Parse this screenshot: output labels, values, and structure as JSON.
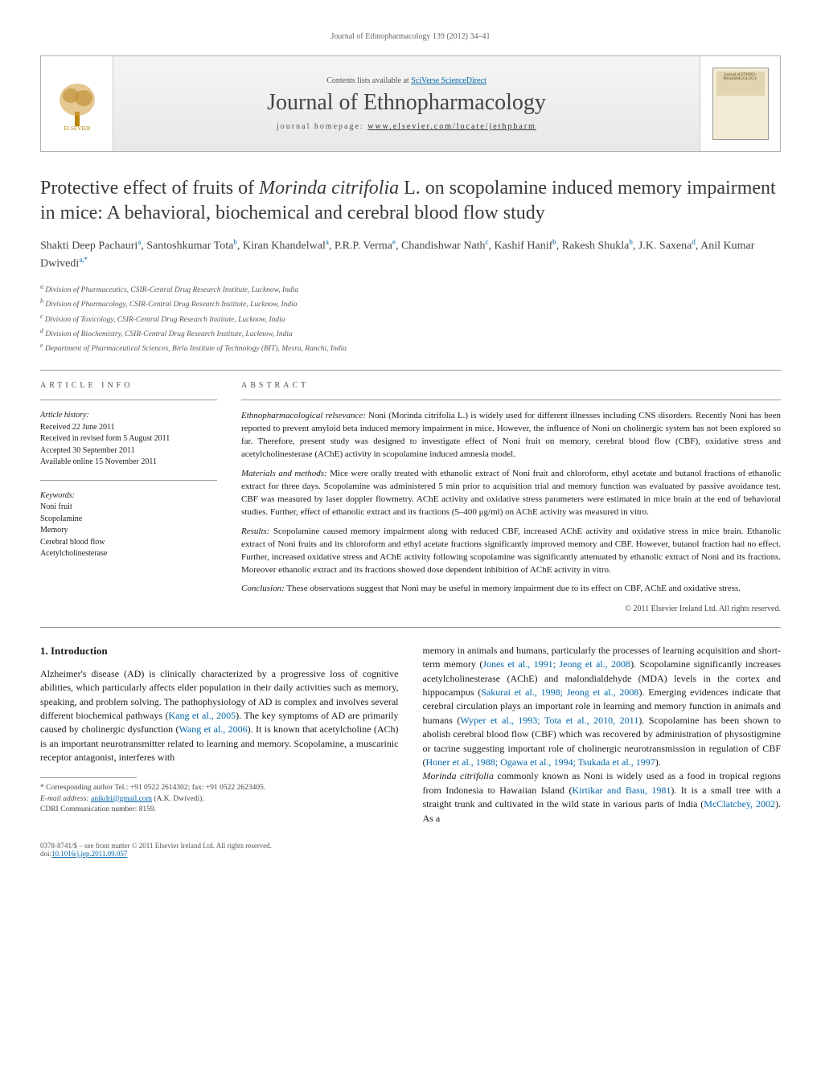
{
  "header": {
    "ref_line": "Journal of Ethnopharmacology 139 (2012) 34–41",
    "contents_prefix": "Contents lists available at ",
    "contents_link": "SciVerse ScienceDirect",
    "journal_title": "Journal of Ethnopharmacology",
    "homepage_prefix": "journal homepage: ",
    "homepage_url": "www.elsevier.com/locate/jethpharm",
    "elsevier_label": "ELSEVIER",
    "cover_label": "Journal of ETHNO-PHARMACOLOGY"
  },
  "title_parts": {
    "pre": "Protective effect of fruits of ",
    "italic": "Morinda citrifolia",
    "post": " L. on scopolamine induced memory impairment in mice: A behavioral, biochemical and cerebral blood flow study"
  },
  "authors_html": "Shakti Deep Pachauri<sup>a</sup>, Santoshkumar Tota<sup>b</sup>, Kiran Khandelwal<sup>a</sup>, P.R.P. Verma<sup>e</sup>, Chandishwar Nath<sup>c</sup>, Kashif Hanif<sup>b</sup>, Rakesh Shukla<sup>b</sup>, J.K. Saxena<sup>d</sup>, Anil Kumar Dwivedi<sup>a,*</sup>",
  "affiliations": [
    "a Division of Pharmaceutics, CSIR-Central Drug Research Institute, Lucknow, India",
    "b Division of Pharmacology, CSIR-Central Drug Research Institute, Lucknow, India",
    "c Division of Toxicology, CSIR-Central Drug Research Institute, Lucknow, India",
    "d Division of Biochemistry, CSIR-Central Drug Research Institute, Lucknow, India",
    "e Department of Pharmaceutical Sciences, Birla Institute of Technology (BIT), Mesra, Ranchi, India"
  ],
  "info": {
    "label": "ARTICLE INFO",
    "history_head": "Article history:",
    "history": [
      "Received 22 June 2011",
      "Received in revised form 5 August 2011",
      "Accepted 30 September 2011",
      "Available online 15 November 2011"
    ],
    "keywords_head": "Keywords:",
    "keywords": [
      "Noni fruit",
      "Scopolamine",
      "Memory",
      "Cerebral blood flow",
      "Acetylcholinesterase"
    ]
  },
  "abstract": {
    "label": "ABSTRACT",
    "paras": [
      {
        "lead": "Ethnopharmacological relsevance:",
        "text": " Noni (Morinda citrifolia L.) is widely used for different illnesses including CNS disorders. Recently Noni has been reported to prevent amyloid beta induced memory impairment in mice. However, the influence of Noni on cholinergic system has not been explored so far. Therefore, present study was designed to investigate effect of Noni fruit on memory, cerebral blood flow (CBF), oxidative stress and acetylcholinesterase (AChE) activity in scopolamine induced amnesia model."
      },
      {
        "lead": "Materials and methods:",
        "text": " Mice were orally treated with ethanolic extract of Noni fruit and chloroform, ethyl acetate and butanol fractions of ethanolic extract for three days. Scopolamine was administered 5 min prior to acquisition trial and memory function was evaluated by passive avoidance test. CBF was measured by laser doppler flowmetry. AChE activity and oxidative stress parameters were estimated in mice brain at the end of behavioral studies. Further, effect of ethanolic extract and its fractions (5–400 μg/ml) on AChE activity was measured in vitro."
      },
      {
        "lead": "Results:",
        "text": " Scopolamine caused memory impairment along with reduced CBF, increased AChE activity and oxidative stress in mice brain. Ethanolic extract of Noni fruits and its chloroform and ethyl acetate fractions significantly improved memory and CBF. However, butanol fraction had no effect. Further, increased oxidative stress and AChE activity following scopolamine was significantly attenuated by ethanolic extract of Noni and its fractions. Moreover ethanolic extract and its fractions showed dose dependent inhibition of AChE activity in vitro."
      },
      {
        "lead": "Conclusion:",
        "text": " These observations suggest that Noni may be useful in memory impairment due to its effect on CBF, AChE and oxidative stress."
      }
    ],
    "copyright": "© 2011 Elsevier Ireland Ltd. All rights reserved."
  },
  "body": {
    "heading": "1. Introduction",
    "left": [
      "Alzheimer's disease (AD) is clinically characterized by a progressive loss of cognitive abilities, which particularly affects elder population in their daily activities such as memory, speaking, and problem solving. The pathophysiology of AD is complex and involves several different biochemical pathways (<span class=\"cite\">Kang et al., 2005</span>). The key symptoms of AD are primarily caused by cholinergic dysfunction (<span class=\"cite\">Wang et al., 2006</span>). It is known that acetylcholine (ACh) is an important neurotransmitter related to learning and memory. Scopolamine, a muscarinic receptor antagonist, interferes with"
    ],
    "right": [
      "memory in animals and humans, particularly the processes of learning acquisition and short-term memory (<span class=\"cite\">Jones et al., 1991; Jeong et al., 2008</span>). Scopolamine significantly increases acetylcholinesterase (AChE) and malondialdehyde (MDA) levels in the cortex and hippocampus (<span class=\"cite\">Sakurai et al., 1998; Jeong et al., 2008</span>). Emerging evidences indicate that cerebral circulation plays an important role in learning and memory function in animals and humans (<span class=\"cite\">Wyper et al., 1993; Tota et al., 2010, 2011</span>). Scopolamine has been shown to abolish cerebral blood flow (CBF) which was recovered by administration of physostigmine or tacrine suggesting important role of cholinergic neurotransmission in regulation of CBF (<span class=\"cite\">Honer et al., 1988; Ogawa et al., 1994; Tsukada et al., 1997</span>).",
      "<span class=\"italic\">Morinda citrifolia</span> commonly known as Noni is widely used as a food in tropical regions from Indonesia to Hawaiian Island (<span class=\"cite\">Kirtikar and Basu, 1981</span>). It is a small tree with a straight trunk and cultivated in the wild state in various parts of India (<span class=\"cite\">McClatchey, 2002</span>). As a"
    ]
  },
  "footnotes": {
    "corr": "* Corresponding author Tel.: +91 0522 2614302; fax: +91 0522 2623405.",
    "email_label": "E-mail address: ",
    "email": "anikdri@gmail.com",
    "email_tail": " (A.K. Dwivedi).",
    "comm": "CDRI Communication number: 8159."
  },
  "bottom": {
    "issn": "0378-8741/$ – see front matter © 2011 Elsevier Ireland Ltd. All rights reserved.",
    "doi_label": "doi:",
    "doi": "10.1016/j.jep.2011.09.057"
  },
  "colors": {
    "link": "#0066aa",
    "text": "#1a1a1a",
    "muted": "#555555",
    "border": "#999999"
  }
}
